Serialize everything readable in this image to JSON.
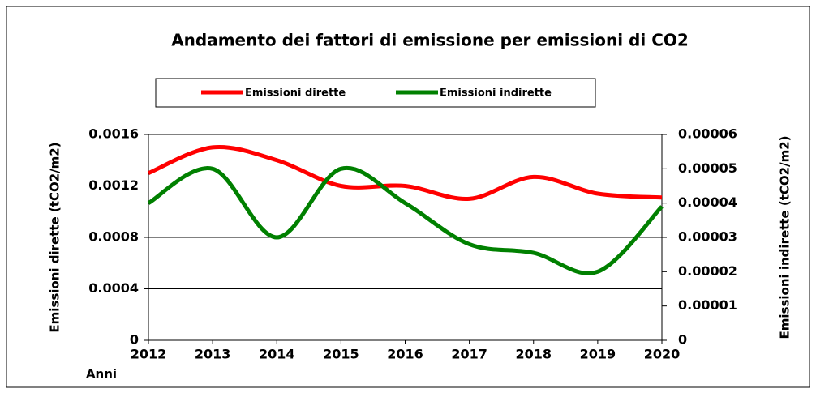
{
  "chart_data": {
    "type": "line",
    "title": "Andamento dei fattori di emissione per emissioni di CO2",
    "x_label": "Anni",
    "y_label": "Emissioni dirette (tCO2/m2)",
    "y2_label": "Emissioni indirette (tCO2/m2)",
    "x": [
      2012,
      2013,
      2014,
      2015,
      2016,
      2017,
      2018,
      2019,
      2020
    ],
    "xlim": [
      2012,
      2020
    ],
    "xticks": [
      2012,
      2013,
      2014,
      2015,
      2016,
      2017,
      2018,
      2019,
      2020
    ],
    "ylim": [
      0,
      0.0016
    ],
    "yticks": [
      0,
      0.0004,
      0.0008,
      0.0012,
      0.0016
    ],
    "y2lim": [
      0,
      6e-05
    ],
    "y2ticks": [
      0,
      1e-05,
      2e-05,
      3e-05,
      4e-05,
      5e-05,
      6e-05
    ],
    "grid": true,
    "legend": "top",
    "series": [
      {
        "name": "Emissioni dirette",
        "color": "#ff0000",
        "values": [
          0.0013,
          0.0015,
          0.0014,
          0.0012,
          0.0012,
          0.0011,
          0.00127,
          0.00114,
          0.00111
        ]
      },
      {
        "name": "Emissioni indirette",
        "color": "#008000",
        "axis": "y2",
        "values": [
          4e-05,
          5e-05,
          3e-05,
          5e-05,
          4e-05,
          2.8e-05,
          2.55e-05,
          2e-05,
          3.9e-05
        ]
      }
    ]
  }
}
